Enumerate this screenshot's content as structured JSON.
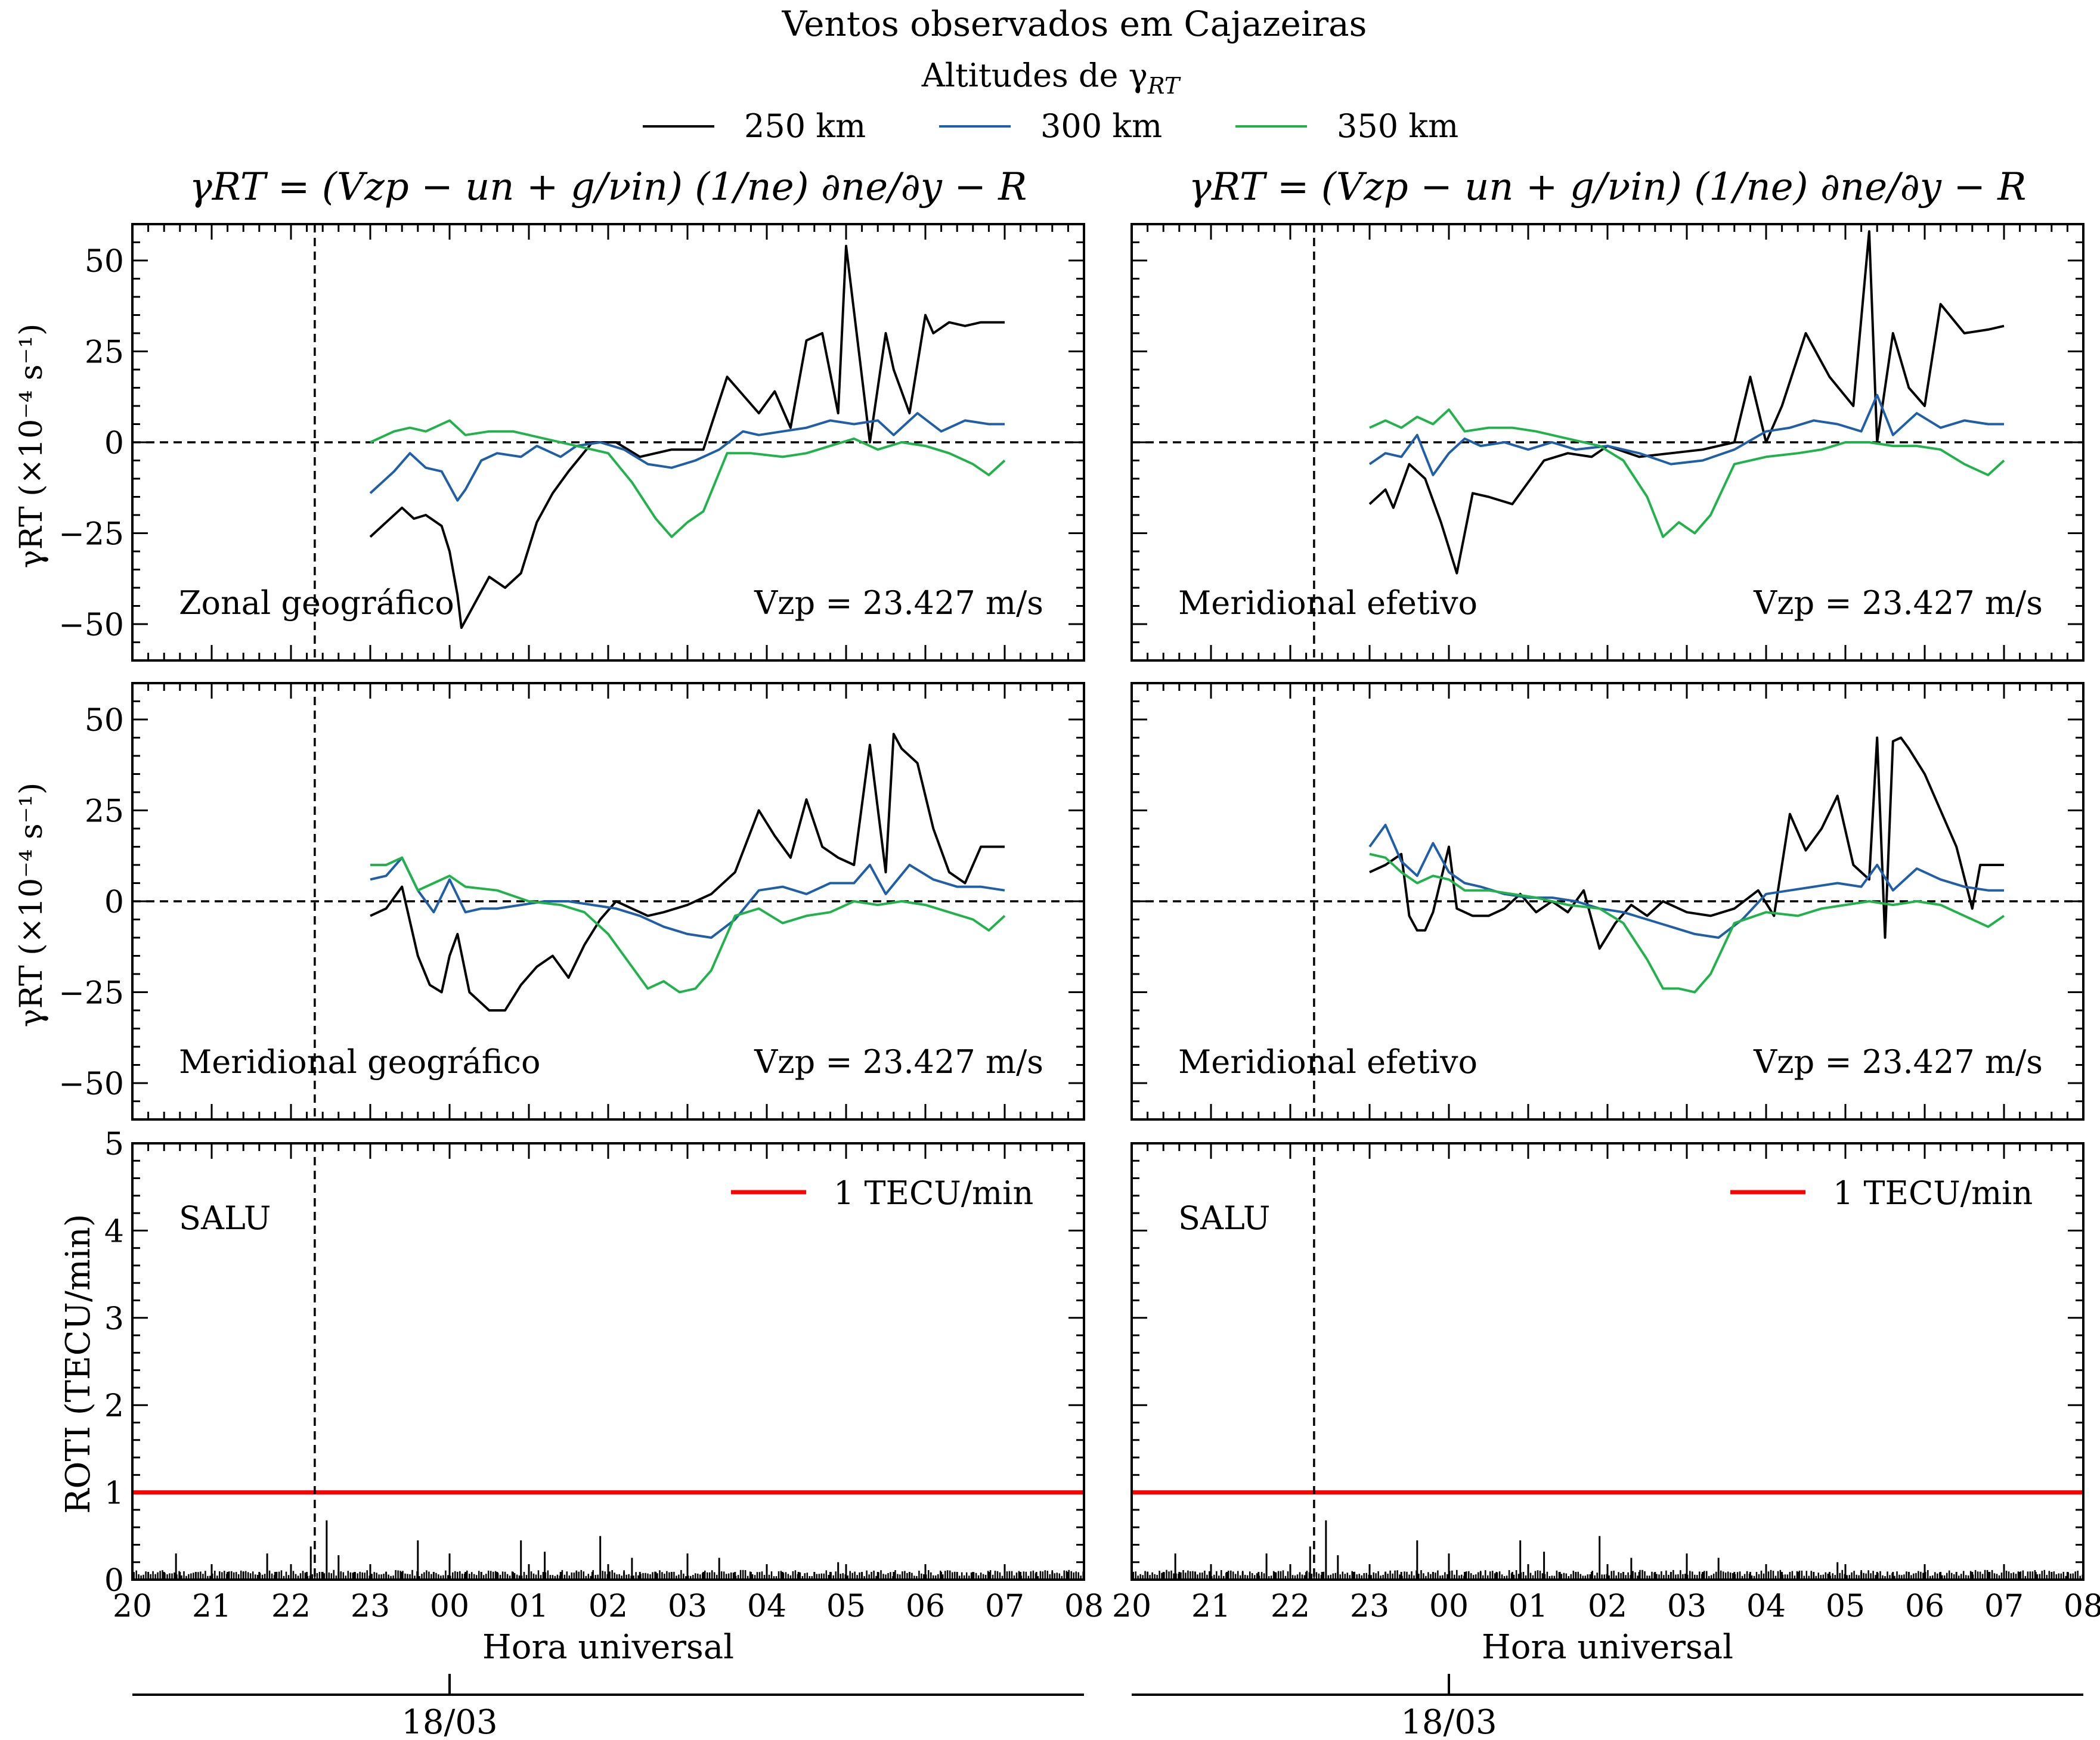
{
  "figure": {
    "title": "Ventos observados em Cajazeiras",
    "legend_title": "Altitudes de γRT",
    "legend_title_base": "Altitudes de γ",
    "legend_title_sub": "RT",
    "legend": [
      {
        "label": "250 km",
        "color": "#000000"
      },
      {
        "label": "300 km",
        "color": "#1f5fa8"
      },
      {
        "label": "350 km",
        "color": "#22b24c"
      }
    ],
    "formula": "γRT = (Vzp − un + g/νin) (1/ne) ∂ne/∂y − R",
    "ylabel_gamma": "γRT (×10⁻⁴ s⁻¹)",
    "ylabel_roti": "ROTI (TECU/min)",
    "xlabel": "Hora universal",
    "date_label": "18/03",
    "x_ticks": [
      "20",
      "21",
      "22",
      "23",
      "00",
      "01",
      "02",
      "03",
      "04",
      "05",
      "06",
      "07",
      "08"
    ],
    "gamma_y_ticks": [
      "50",
      "25",
      "0",
      "−25",
      "−50"
    ],
    "roti_y_ticks": [
      "5",
      "4",
      "3",
      "2",
      "1",
      "0"
    ],
    "vzp_text": "Vzp = 23.427 m/s",
    "roti_station": "SALU",
    "roti_threshold_label": "1 TECU/min",
    "roti_threshold_color": "#ff0000"
  },
  "chart_data": [
    {
      "type": "line",
      "panel": "top-left",
      "title": "γRT = (Vzp − un + g/νin)(1/ne)∂ne/∂y − R",
      "annotation": "Zonal geográfico",
      "vzp": "Vzp = 23.427 m/s",
      "xlabel": "",
      "ylabel": "γRT (×10⁻⁴ s⁻¹)",
      "xlim": [
        20,
        32
      ],
      "ylim": [
        -60,
        60
      ],
      "vline_x": 22.3,
      "hline_y": 0,
      "series": [
        {
          "name": "250 km",
          "x": [
            23.0,
            23.2,
            23.4,
            23.55,
            23.7,
            23.9,
            24.0,
            24.1,
            24.15,
            24.25,
            24.3,
            24.5,
            24.7,
            24.9,
            25.1,
            25.3,
            25.5,
            25.8,
            26.1,
            26.4,
            26.8,
            27.2,
            27.5,
            27.9,
            28.1,
            28.3,
            28.5,
            28.7,
            28.9,
            29.0,
            29.3,
            29.5,
            29.6,
            29.8,
            30.0,
            30.1,
            30.3,
            30.5,
            30.7,
            31.0
          ],
          "y": [
            -26,
            -22,
            -18,
            -21,
            -20,
            -23,
            -30,
            -42,
            -51,
            -47,
            -45,
            -37,
            -40,
            -36,
            -22,
            -14,
            -8,
            0,
            0,
            -4,
            -2,
            -2,
            18,
            8,
            14,
            4,
            28,
            30,
            8,
            54,
            0,
            30,
            20,
            8,
            35,
            30,
            33,
            32,
            33,
            33
          ]
        },
        {
          "name": "300 km",
          "x": [
            23.0,
            23.3,
            23.5,
            23.7,
            23.9,
            24.1,
            24.2,
            24.4,
            24.6,
            24.9,
            25.1,
            25.4,
            25.6,
            25.9,
            26.2,
            26.5,
            26.8,
            27.1,
            27.4,
            27.7,
            27.9,
            28.2,
            28.5,
            28.8,
            29.1,
            29.4,
            29.6,
            29.9,
            30.2,
            30.5,
            30.8,
            31.0
          ],
          "y": [
            -14,
            -8,
            -3,
            -7,
            -8,
            -16,
            -13,
            -5,
            -3,
            -4,
            -1,
            -4,
            -1,
            0,
            -2,
            -6,
            -7,
            -5,
            -2,
            3,
            2,
            3,
            4,
            6,
            5,
            6,
            2,
            8,
            3,
            6,
            5,
            5
          ]
        },
        {
          "name": "350 km",
          "x": [
            23.0,
            23.3,
            23.5,
            23.7,
            24.0,
            24.2,
            24.5,
            24.8,
            25.2,
            25.6,
            26.0,
            26.3,
            26.6,
            26.8,
            27.0,
            27.2,
            27.5,
            27.8,
            28.2,
            28.5,
            28.8,
            29.1,
            29.4,
            29.7,
            30.0,
            30.3,
            30.6,
            30.8,
            31.0
          ],
          "y": [
            0,
            3,
            4,
            3,
            6,
            2,
            3,
            3,
            1,
            -1,
            -3,
            -11,
            -21,
            -26,
            -22,
            -19,
            -3,
            -3,
            -4,
            -3,
            -1,
            1,
            -2,
            0,
            -1,
            -3,
            -6,
            -9,
            -5
          ]
        }
      ]
    },
    {
      "type": "line",
      "panel": "top-right",
      "title": "γRT = (Vzp − un + g/νin)(1/ne)∂ne/∂y − R",
      "annotation": "Meridional efetivo",
      "vzp": "Vzp = 23.427 m/s",
      "xlim": [
        20,
        32
      ],
      "ylim": [
        -60,
        60
      ],
      "vline_x": 22.3,
      "hline_y": 0,
      "series": [
        {
          "name": "250 km",
          "x": [
            23.0,
            23.2,
            23.3,
            23.5,
            23.7,
            23.9,
            24.1,
            24.3,
            24.5,
            24.8,
            25.2,
            25.5,
            25.8,
            26.0,
            26.4,
            26.8,
            27.2,
            27.6,
            27.8,
            28.0,
            28.2,
            28.5,
            28.8,
            29.1,
            29.3,
            29.4,
            29.6,
            29.8,
            30.0,
            30.2,
            30.5,
            30.8,
            31.0
          ],
          "y": [
            -17,
            -13,
            -18,
            -6,
            -10,
            -22,
            -36,
            -14,
            -15,
            -17,
            -5,
            -3,
            -4,
            -1,
            -4,
            -3,
            -2,
            0,
            18,
            0,
            10,
            30,
            18,
            10,
            58,
            0,
            30,
            15,
            10,
            38,
            30,
            31,
            32
          ]
        },
        {
          "name": "300 km",
          "x": [
            23.0,
            23.2,
            23.4,
            23.6,
            23.8,
            24.0,
            24.2,
            24.4,
            24.7,
            25.0,
            25.3,
            25.6,
            26.0,
            26.4,
            26.8,
            27.2,
            27.6,
            28.0,
            28.3,
            28.6,
            28.9,
            29.2,
            29.4,
            29.6,
            29.9,
            30.2,
            30.5,
            30.8,
            31.0
          ],
          "y": [
            -6,
            -3,
            -4,
            2,
            -9,
            -3,
            1,
            -1,
            0,
            -2,
            0,
            -2,
            -1,
            -3,
            -6,
            -5,
            -2,
            3,
            4,
            6,
            5,
            3,
            13,
            2,
            8,
            4,
            6,
            5,
            5
          ]
        },
        {
          "name": "350 km",
          "x": [
            23.0,
            23.2,
            23.4,
            23.6,
            23.8,
            24.0,
            24.2,
            24.5,
            24.8,
            25.1,
            25.5,
            25.9,
            26.2,
            26.5,
            26.7,
            26.9,
            27.1,
            27.3,
            27.6,
            28.0,
            28.4,
            28.7,
            29.0,
            29.3,
            29.6,
            29.9,
            30.2,
            30.5,
            30.8,
            31.0
          ],
          "y": [
            4,
            6,
            4,
            7,
            5,
            9,
            3,
            4,
            4,
            3,
            1,
            -1,
            -5,
            -15,
            -26,
            -22,
            -25,
            -20,
            -6,
            -4,
            -3,
            -2,
            0,
            0,
            -1,
            -1,
            -2,
            -6,
            -9,
            -5
          ]
        }
      ]
    },
    {
      "type": "line",
      "panel": "middle-left",
      "annotation": "Meridional geográfico",
      "vzp": "Vzp = 23.427 m/s",
      "ylabel": "γRT (×10⁻⁴ s⁻¹)",
      "xlim": [
        20,
        32
      ],
      "ylim": [
        -60,
        60
      ],
      "vline_x": 22.3,
      "hline_y": 0,
      "series": [
        {
          "name": "250 km",
          "x": [
            23.0,
            23.2,
            23.4,
            23.6,
            23.75,
            23.9,
            24.0,
            24.1,
            24.25,
            24.4,
            24.5,
            24.7,
            24.9,
            25.1,
            25.3,
            25.5,
            25.7,
            25.9,
            26.1,
            26.3,
            26.5,
            26.7,
            27.0,
            27.3,
            27.6,
            27.9,
            28.1,
            28.3,
            28.5,
            28.7,
            28.9,
            29.1,
            29.3,
            29.5,
            29.6,
            29.7,
            29.9,
            30.1,
            30.3,
            30.5,
            30.7,
            31.0
          ],
          "y": [
            -4,
            -2,
            4,
            -15,
            -23,
            -25,
            -15,
            -9,
            -25,
            -28,
            -30,
            -30,
            -23,
            -18,
            -15,
            -21,
            -12,
            -5,
            0,
            -2,
            -4,
            -3,
            -1,
            2,
            8,
            25,
            18,
            12,
            28,
            15,
            12,
            10,
            43,
            8,
            46,
            42,
            38,
            20,
            8,
            5,
            15,
            15
          ]
        },
        {
          "name": "300 km",
          "x": [
            23.0,
            23.2,
            23.4,
            23.6,
            23.8,
            24.0,
            24.2,
            24.4,
            24.6,
            24.9,
            25.2,
            25.5,
            25.8,
            26.1,
            26.4,
            26.7,
            27.0,
            27.3,
            27.6,
            27.9,
            28.2,
            28.5,
            28.8,
            29.1,
            29.3,
            29.5,
            29.8,
            30.1,
            30.4,
            30.7,
            31.0
          ],
          "y": [
            6,
            7,
            12,
            3,
            -3,
            6,
            -3,
            -2,
            -2,
            -1,
            0,
            0,
            -1,
            -2,
            -4,
            -7,
            -9,
            -10,
            -5,
            3,
            4,
            2,
            5,
            5,
            10,
            2,
            10,
            6,
            4,
            4,
            3
          ]
        },
        {
          "name": "350 km",
          "x": [
            23.0,
            23.2,
            23.4,
            23.6,
            23.8,
            24.0,
            24.2,
            24.6,
            25.0,
            25.4,
            25.7,
            26.0,
            26.3,
            26.5,
            26.7,
            26.9,
            27.1,
            27.3,
            27.6,
            27.9,
            28.2,
            28.5,
            28.8,
            29.1,
            29.4,
            29.7,
            30.0,
            30.3,
            30.6,
            30.8,
            31.0
          ],
          "y": [
            10,
            10,
            12,
            3,
            5,
            7,
            4,
            3,
            0,
            -1,
            -3,
            -9,
            -18,
            -24,
            -22,
            -25,
            -24,
            -19,
            -4,
            -2,
            -6,
            -4,
            -3,
            0,
            -1,
            0,
            -1,
            -3,
            -5,
            -8,
            -4
          ]
        }
      ]
    },
    {
      "type": "line",
      "panel": "middle-right",
      "annotation": "Meridional efetivo",
      "vzp": "Vzp = 23.427 m/s",
      "xlim": [
        20,
        32
      ],
      "ylim": [
        -60,
        60
      ],
      "vline_x": 22.3,
      "hline_y": 0,
      "series": [
        {
          "name": "250 km",
          "x": [
            23.0,
            23.2,
            23.4,
            23.5,
            23.6,
            23.7,
            23.8,
            24.0,
            24.1,
            24.3,
            24.5,
            24.7,
            24.9,
            25.1,
            25.3,
            25.5,
            25.7,
            25.9,
            26.1,
            26.3,
            26.5,
            26.7,
            27.0,
            27.3,
            27.6,
            27.9,
            28.1,
            28.3,
            28.5,
            28.7,
            28.9,
            29.1,
            29.3,
            29.4,
            29.5,
            29.6,
            29.7,
            29.8,
            30.0,
            30.2,
            30.4,
            30.6,
            30.7,
            31.0
          ],
          "y": [
            8,
            10,
            13,
            -4,
            -8,
            -8,
            -3,
            15,
            -2,
            -4,
            -4,
            -2,
            2,
            -3,
            0,
            -3,
            3,
            -13,
            -6,
            -1,
            -4,
            0,
            -3,
            -4,
            -2,
            3,
            -4,
            24,
            14,
            20,
            29,
            10,
            6,
            45,
            -10,
            44,
            45,
            42,
            35,
            25,
            15,
            -2,
            10,
            10
          ]
        },
        {
          "name": "300 km",
          "x": [
            23.0,
            23.2,
            23.4,
            23.6,
            23.8,
            24.0,
            24.2,
            24.4,
            24.7,
            25.0,
            25.3,
            25.6,
            25.9,
            26.2,
            26.5,
            26.8,
            27.1,
            27.4,
            27.7,
            28.0,
            28.3,
            28.6,
            28.9,
            29.2,
            29.4,
            29.6,
            29.9,
            30.2,
            30.5,
            30.8,
            31.0
          ],
          "y": [
            15,
            21,
            11,
            7,
            16,
            8,
            5,
            4,
            2,
            1,
            1,
            0,
            -2,
            -3,
            -5,
            -7,
            -9,
            -10,
            -5,
            2,
            3,
            4,
            5,
            4,
            10,
            3,
            9,
            6,
            4,
            3,
            3
          ]
        },
        {
          "name": "350 km",
          "x": [
            23.0,
            23.2,
            23.4,
            23.6,
            23.8,
            24.0,
            24.2,
            24.5,
            24.8,
            25.1,
            25.5,
            25.9,
            26.2,
            26.5,
            26.7,
            26.9,
            27.1,
            27.3,
            27.6,
            28.0,
            28.4,
            28.7,
            29.0,
            29.3,
            29.6,
            29.9,
            30.2,
            30.5,
            30.8,
            31.0
          ],
          "y": [
            13,
            12,
            8,
            5,
            7,
            6,
            3,
            3,
            2,
            1,
            -1,
            -2,
            -6,
            -16,
            -24,
            -24,
            -25,
            -20,
            -6,
            -3,
            -4,
            -2,
            -1,
            0,
            -1,
            0,
            -1,
            -4,
            -7,
            -4
          ]
        }
      ]
    },
    {
      "type": "bar",
      "panel": "bottom-left",
      "annotation": "SALU",
      "ylabel": "ROTI (TECU/min)",
      "xlabel": "Hora universal",
      "xlim": [
        20,
        32
      ],
      "ylim": [
        0,
        5
      ],
      "vline_x": 22.3,
      "threshold": 1,
      "baseline_roti": 0.08,
      "spikes": [
        {
          "x": 20.55,
          "y": 0.3
        },
        {
          "x": 21.7,
          "y": 0.3
        },
        {
          "x": 22.25,
          "y": 0.38
        },
        {
          "x": 22.45,
          "y": 0.68
        },
        {
          "x": 22.6,
          "y": 0.28
        },
        {
          "x": 23.6,
          "y": 0.45
        },
        {
          "x": 24.0,
          "y": 0.3
        },
        {
          "x": 24.9,
          "y": 0.45
        },
        {
          "x": 25.2,
          "y": 0.32
        },
        {
          "x": 25.9,
          "y": 0.5
        },
        {
          "x": 26.3,
          "y": 0.25
        },
        {
          "x": 27.0,
          "y": 0.3
        },
        {
          "x": 27.4,
          "y": 0.25
        },
        {
          "x": 28.9,
          "y": 0.2
        }
      ]
    },
    {
      "type": "bar",
      "panel": "bottom-right",
      "annotation": "SALU",
      "xlabel": "Hora universal",
      "xlim": [
        20,
        32
      ],
      "ylim": [
        0,
        5
      ],
      "vline_x": 22.3,
      "threshold": 1,
      "baseline_roti": 0.08,
      "spikes": [
        {
          "x": 20.55,
          "y": 0.3
        },
        {
          "x": 21.7,
          "y": 0.3
        },
        {
          "x": 22.25,
          "y": 0.38
        },
        {
          "x": 22.45,
          "y": 0.68
        },
        {
          "x": 22.6,
          "y": 0.28
        },
        {
          "x": 23.6,
          "y": 0.45
        },
        {
          "x": 24.0,
          "y": 0.3
        },
        {
          "x": 24.9,
          "y": 0.45
        },
        {
          "x": 25.2,
          "y": 0.32
        },
        {
          "x": 25.9,
          "y": 0.5
        },
        {
          "x": 26.3,
          "y": 0.25
        },
        {
          "x": 27.0,
          "y": 0.3
        },
        {
          "x": 27.4,
          "y": 0.25
        },
        {
          "x": 28.9,
          "y": 0.2
        }
      ]
    }
  ]
}
